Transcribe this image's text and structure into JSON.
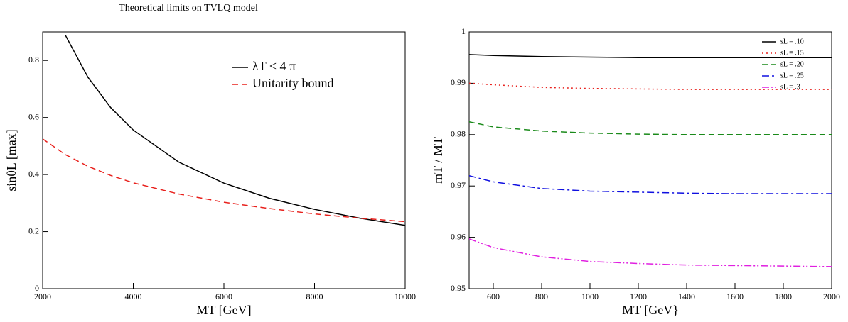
{
  "chart_data": [
    {
      "type": "line",
      "title": "Theoretical limits on TVLQ model",
      "xlabel": "MT [GeV]",
      "ylabel": "sinθL [max]",
      "x": [
        2000,
        2500,
        3000,
        3500,
        4000,
        5000,
        6000,
        7000,
        8000,
        9000,
        10000
      ],
      "series": [
        {
          "name": "λT < 4 π",
          "color": "#000000",
          "dash": "solid",
          "values": [
            null,
            0.889,
            0.741,
            0.635,
            0.556,
            0.444,
            0.37,
            0.317,
            0.278,
            0.247,
            0.222
          ]
        },
        {
          "name": "Unitarity bound",
          "color": "#e8201c",
          "dash": "dashed",
          "values": [
            0.525,
            0.47,
            0.429,
            0.397,
            0.371,
            0.332,
            0.303,
            0.281,
            0.262,
            0.247,
            0.235
          ]
        }
      ],
      "xlim": [
        2000,
        10000
      ],
      "xticks": [
        2000,
        4000,
        6000,
        8000,
        10000
      ],
      "ylim": [
        0,
        0.9
      ],
      "yticks": [
        0,
        0.2,
        0.4,
        0.6,
        0.8
      ],
      "legend": "upper right"
    },
    {
      "type": "line",
      "xlabel": "MT [GeV}",
      "ylabel": "mT / MT",
      "x": [
        500,
        600,
        800,
        1000,
        1200,
        1400,
        1600,
        1800,
        2000
      ],
      "series": [
        {
          "name": "sL = .10",
          "color": "#000000",
          "dash": "solid",
          "values": [
            0.9956,
            0.9954,
            0.9952,
            0.9951,
            0.995,
            0.995,
            0.995,
            0.995,
            0.995
          ]
        },
        {
          "name": "sL = .15",
          "color": "#e8201c",
          "dash": "dotted",
          "values": [
            0.99,
            0.9897,
            0.9892,
            0.989,
            0.9889,
            0.9888,
            0.9888,
            0.9888,
            0.9888
          ]
        },
        {
          "name": "sL = .20",
          "color": "#1a8a1a",
          "dash": "dashed",
          "values": [
            0.9825,
            0.9815,
            0.9807,
            0.9803,
            0.9801,
            0.98,
            0.98,
            0.98,
            0.98
          ]
        },
        {
          "name": "sL = .25",
          "color": "#1010e0",
          "dash": "dashdot",
          "values": [
            0.972,
            0.9708,
            0.9695,
            0.969,
            0.9688,
            0.9686,
            0.9685,
            0.9685,
            0.9685
          ]
        },
        {
          "name": "sL = .3",
          "color": "#e020e0",
          "dash": "dashdotdot",
          "values": [
            0.9597,
            0.958,
            0.9562,
            0.9553,
            0.9549,
            0.9546,
            0.9545,
            0.9544,
            0.9543
          ]
        }
      ],
      "xlim": [
        500,
        2000
      ],
      "xticks": [
        600,
        800,
        1000,
        1200,
        1400,
        1600,
        1800,
        2000
      ],
      "ylim": [
        0.95,
        1
      ],
      "yticks": [
        0.95,
        0.96,
        0.97,
        0.98,
        0.99,
        1
      ],
      "legend": "upper right"
    }
  ]
}
